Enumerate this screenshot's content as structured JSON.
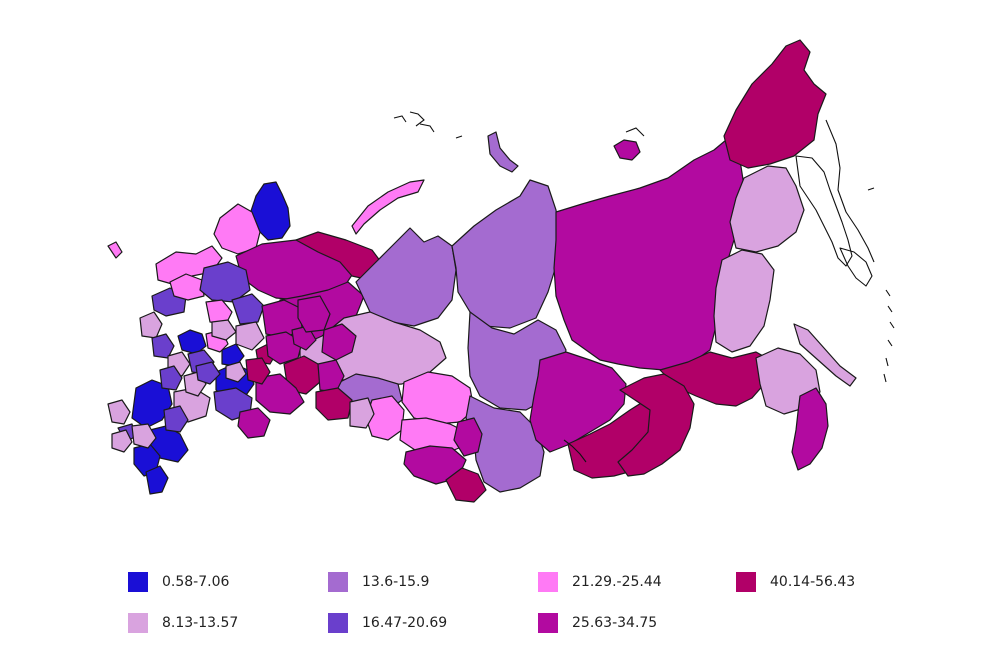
{
  "legend": [
    {
      "label": "0.58-7.06",
      "color": "#1a0fd6"
    },
    {
      "label": "8.13-13.57",
      "color": "#d9a3df"
    },
    {
      "label": "13.6-15.9",
      "color": "#a46bd0"
    },
    {
      "label": "16.47-20.69",
      "color": "#6a3fcc"
    },
    {
      "label": "21.29.-25.44",
      "color": "#ff7af5"
    },
    {
      "label": "25.63-34.75",
      "color": "#b20aa0"
    },
    {
      "label": "40.14-56.43",
      "color": "#b10068"
    }
  ]
}
